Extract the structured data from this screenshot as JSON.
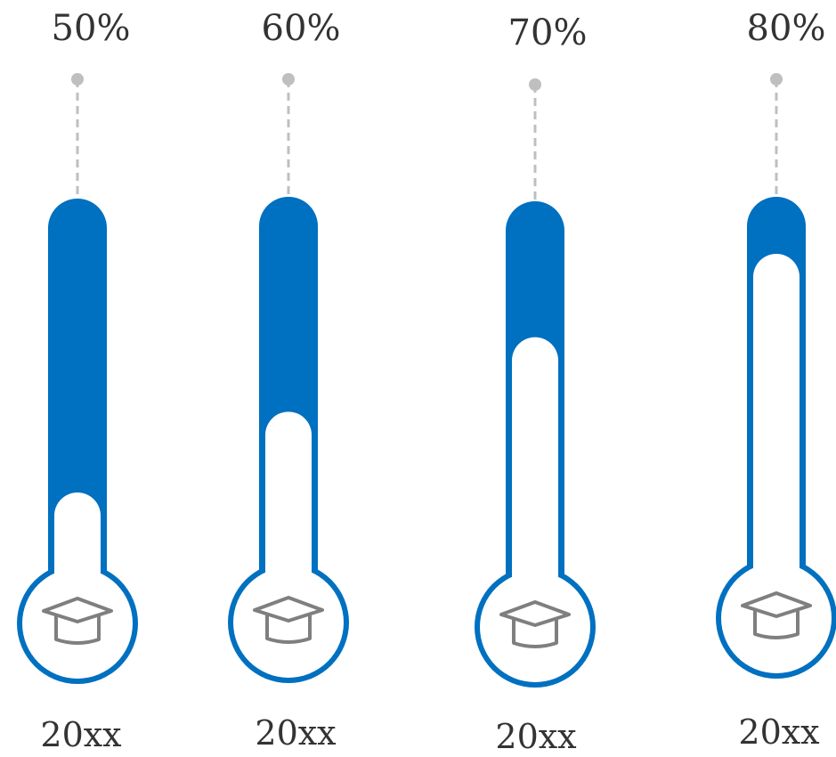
{
  "colors": {
    "accent": "#0070C0",
    "connector": "#BFBFBF",
    "icon": "#7F7F7F",
    "background": "#FFFFFF",
    "text": "#333333"
  },
  "icon_name": "graduation-cap-icon",
  "gauges": [
    {
      "percent_label": "50%",
      "year_label": "20xx",
      "fill_level": 0.5
    },
    {
      "percent_label": "60%",
      "year_label": "20xx",
      "fill_level": 0.6
    },
    {
      "percent_label": "70%",
      "year_label": "20xx",
      "fill_level": 0.7
    },
    {
      "percent_label": "80%",
      "year_label": "20xx",
      "fill_level": 0.8
    }
  ]
}
